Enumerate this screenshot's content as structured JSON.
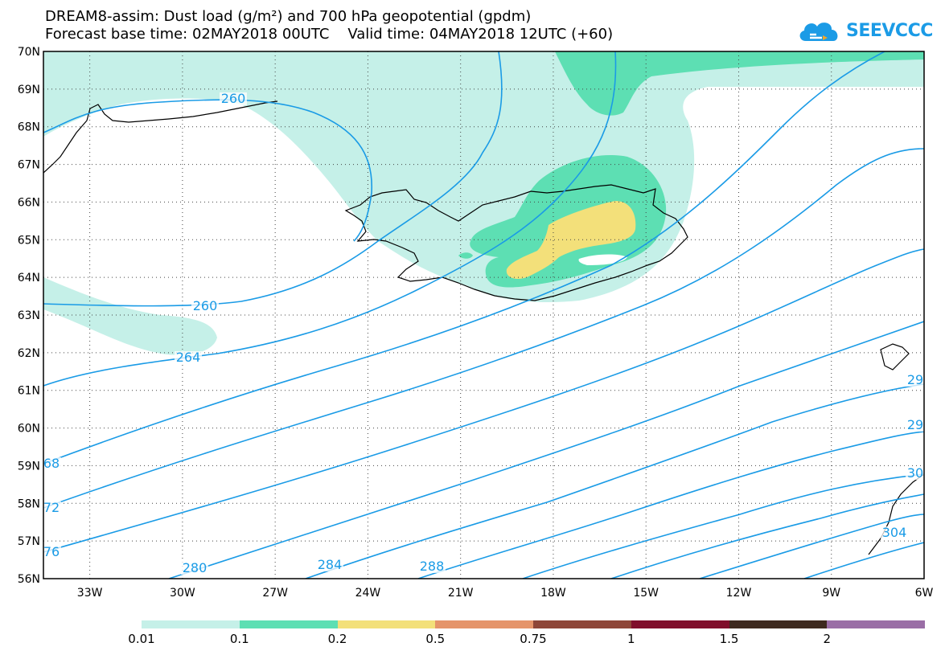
{
  "header": {
    "title": "DREAM8-assim: Dust load (g/m²) and 700 hPa geopotential (gpdm)",
    "forecast_base": "Forecast base time: 02MAY2018 00UTC",
    "valid_time": "Valid time: 04MAY2018 12UTC (+60)"
  },
  "logo": {
    "text": "SEEVCCC",
    "icon": "cloud-logo-icon"
  },
  "chart_data": {
    "type": "map",
    "x_ticks": [
      "33W",
      "30W",
      "27W",
      "24W",
      "21W",
      "18W",
      "15W",
      "12W",
      "9W",
      "6W"
    ],
    "y_ticks": [
      "70N",
      "69N",
      "68N",
      "67N",
      "66N",
      "65N",
      "64N",
      "63N",
      "62N",
      "61N",
      "60N",
      "59N",
      "58N",
      "57N",
      "56N"
    ],
    "xlim_deg": [
      -34.5,
      -6
    ],
    "ylim_deg": [
      56,
      70
    ],
    "contour_labels": [
      "260",
      "260",
      "264",
      "68",
      "72",
      "76",
      "280",
      "284",
      "288",
      "29",
      "29",
      "30",
      "304"
    ],
    "colorbar": {
      "levels": [
        "0.01",
        "0.1",
        "0.2",
        "0.5",
        "0.75",
        "1",
        "1.5",
        "2"
      ],
      "colors": [
        "#c5f0e8",
        "#5ddfb3",
        "#f3e07a",
        "#e5946a",
        "#8e4638",
        "#800e2b",
        "#3e2a1f",
        "#9a6ea6"
      ]
    },
    "contour_color": "#1a9be6"
  }
}
